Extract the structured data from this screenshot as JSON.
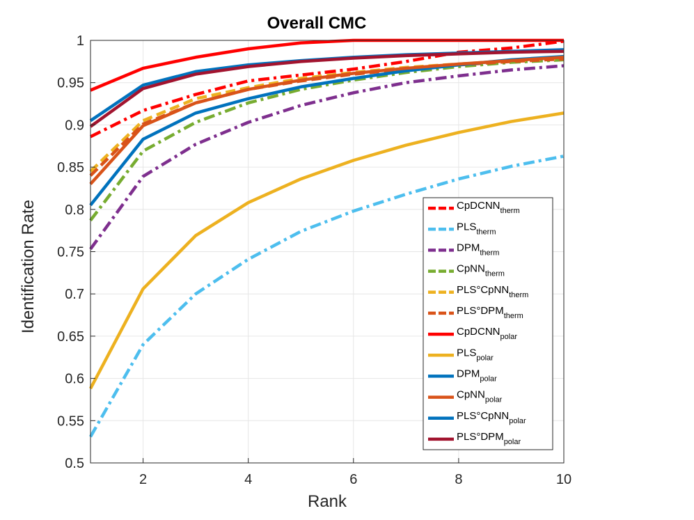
{
  "chart_data": {
    "type": "line",
    "title": "Overall CMC",
    "xlabel": "Rank",
    "ylabel": "Identification Rate",
    "xlim": [
      1,
      10
    ],
    "ylim": [
      0.5,
      1
    ],
    "grid": true,
    "legend_position": "bottom-right",
    "x": [
      1,
      2,
      3,
      4,
      5,
      6,
      7,
      8,
      9,
      10
    ],
    "x_ticks": [
      "2",
      "4",
      "6",
      "8",
      "10"
    ],
    "y_ticks": [
      "0.5",
      "0.55",
      "0.6",
      "0.65",
      "0.7",
      "0.75",
      "0.8",
      "0.85",
      "0.9",
      "0.95",
      "1"
    ],
    "series": [
      {
        "base": "CpDCNN",
        "sub": "therm",
        "color": "#ff0000",
        "style": "dashdot",
        "values": [
          0.886,
          0.917,
          0.936,
          0.952,
          0.959,
          0.966,
          0.975,
          0.986,
          0.991,
          0.999
        ]
      },
      {
        "base": "PLS",
        "sub": "therm",
        "color": "#4dbeee",
        "style": "dashdot",
        "values": [
          0.531,
          0.64,
          0.7,
          0.741,
          0.774,
          0.798,
          0.818,
          0.836,
          0.851,
          0.863
        ]
      },
      {
        "base": "DPM",
        "sub": "therm",
        "color": "#7e2f8e",
        "style": "dashdot",
        "values": [
          0.753,
          0.839,
          0.877,
          0.903,
          0.923,
          0.938,
          0.95,
          0.958,
          0.965,
          0.97
        ]
      },
      {
        "base": "CpNN",
        "sub": "therm",
        "color": "#77ac30",
        "style": "dashdot",
        "values": [
          0.787,
          0.869,
          0.903,
          0.926,
          0.942,
          0.953,
          0.962,
          0.969,
          0.974,
          0.977
        ]
      },
      {
        "base": "PLS°CpNN",
        "sub": "therm",
        "color": "#edb120",
        "style": "dashed",
        "values": [
          0.845,
          0.905,
          0.931,
          0.944,
          0.955,
          0.962,
          0.968,
          0.972,
          0.976,
          0.978
        ]
      },
      {
        "base": "PLS°DPM",
        "sub": "therm",
        "color": "#d95319",
        "style": "dashed",
        "values": [
          0.84,
          0.901,
          0.926,
          0.942,
          0.952,
          0.96,
          0.966,
          0.971,
          0.975,
          0.978
        ]
      },
      {
        "base": "CpDCNN",
        "sub": "polar",
        "color": "#ff0000",
        "style": "solid",
        "values": [
          0.941,
          0.967,
          0.98,
          0.99,
          0.997,
          1.0,
          1.0,
          1.0,
          1.0,
          1.0
        ]
      },
      {
        "base": "PLS",
        "sub": "polar",
        "color": "#edb120",
        "style": "solid",
        "values": [
          0.588,
          0.706,
          0.769,
          0.808,
          0.836,
          0.858,
          0.876,
          0.891,
          0.904,
          0.914
        ]
      },
      {
        "base": "DPM",
        "sub": "polar",
        "color": "#0072bd",
        "style": "solid",
        "values": [
          0.805,
          0.883,
          0.914,
          0.931,
          0.945,
          0.955,
          0.964,
          0.971,
          0.977,
          0.981
        ]
      },
      {
        "base": "CpNN",
        "sub": "polar",
        "color": "#d95319",
        "style": "solid",
        "values": [
          0.83,
          0.899,
          0.926,
          0.942,
          0.953,
          0.961,
          0.967,
          0.972,
          0.976,
          0.98
        ]
      },
      {
        "base": "PLS°CpNN",
        "sub": "polar",
        "color": "#0072bd",
        "style": "solid",
        "values": [
          0.905,
          0.947,
          0.963,
          0.971,
          0.976,
          0.98,
          0.983,
          0.985,
          0.987,
          0.989
        ]
      },
      {
        "base": "PLS°DPM",
        "sub": "polar",
        "color": "#a2142f",
        "style": "solid",
        "values": [
          0.898,
          0.943,
          0.96,
          0.969,
          0.975,
          0.979,
          0.982,
          0.984,
          0.986,
          0.987
        ]
      }
    ]
  }
}
